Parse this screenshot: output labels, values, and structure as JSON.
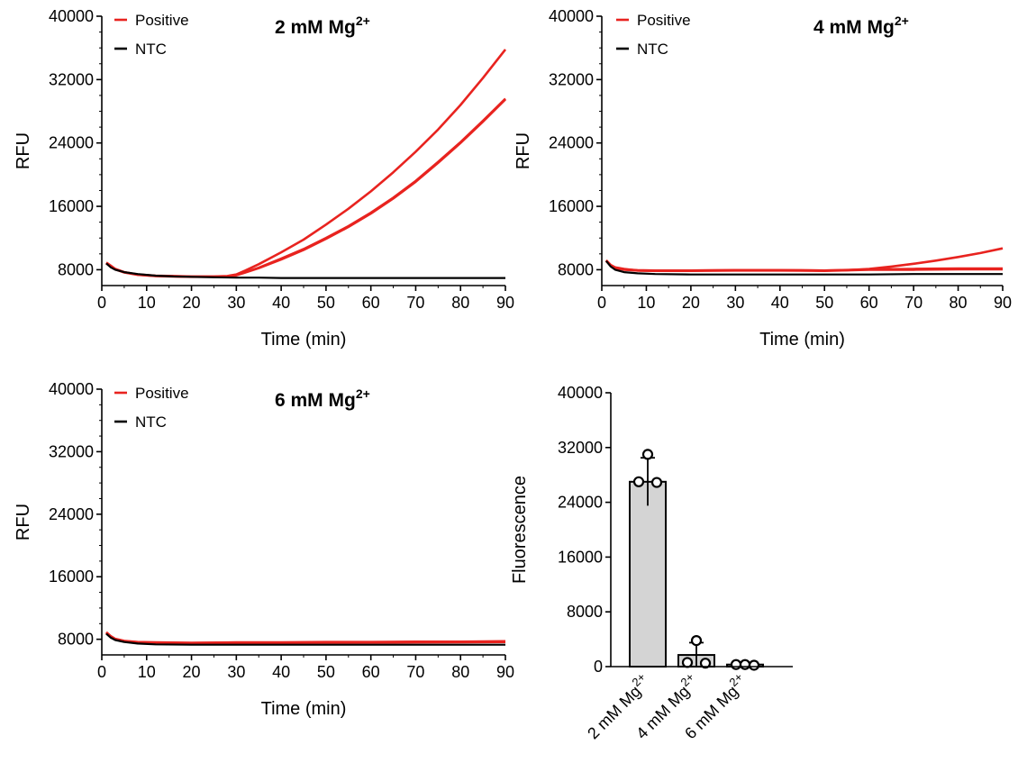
{
  "colors": {
    "positive": "#e8231f",
    "ntc": "#000000",
    "bar_fill": "#d4d4d4",
    "axis": "#000000"
  },
  "chart_data": [
    {
      "type": "line",
      "title": "2 mM Mg",
      "title_sup": "2+",
      "xlabel": "Time (min)",
      "ylabel": "RFU",
      "xlim": [
        0,
        90
      ],
      "ylim": [
        6000,
        40000
      ],
      "xticks": [
        0,
        10,
        20,
        30,
        40,
        50,
        60,
        70,
        80,
        90
      ],
      "yticks": [
        8000,
        16000,
        24000,
        32000,
        40000
      ],
      "xtick_labels": [
        "0",
        "10",
        "20",
        "30",
        "40",
        "50",
        "60",
        "70",
        "80",
        "90"
      ],
      "ytick_labels": [
        "8000",
        "16000",
        "24000",
        "32000",
        "40000"
      ],
      "legend": {
        "position": "top-left",
        "entries": [
          {
            "label": "Positive",
            "color_key": "positive"
          },
          {
            "label": "NTC",
            "color_key": "ntc"
          }
        ]
      },
      "series": [
        {
          "name": "NTC",
          "color_key": "ntc",
          "x": [
            1,
            2,
            3,
            5,
            8,
            12,
            16,
            20,
            25,
            30,
            35,
            40,
            50,
            60,
            70,
            80,
            90
          ],
          "y": [
            8800,
            8300,
            8000,
            7700,
            7450,
            7250,
            7150,
            7100,
            7050,
            7000,
            7000,
            6950,
            6950,
            6950,
            6950,
            6950,
            6950
          ]
        },
        {
          "color_key": "positive",
          "x": [
            1,
            2,
            3,
            5,
            8,
            12,
            16,
            20,
            25,
            28,
            30,
            32,
            35,
            40,
            45,
            50,
            55,
            60,
            65,
            70,
            75,
            80,
            85,
            90
          ],
          "y": [
            8900,
            8500,
            8100,
            7700,
            7400,
            7250,
            7200,
            7150,
            7150,
            7200,
            7400,
            7900,
            8700,
            10200,
            11800,
            13700,
            15700,
            17900,
            20300,
            22900,
            25700,
            28800,
            32200,
            35800
          ]
        },
        {
          "color_key": "positive",
          "x": [
            1,
            2,
            3,
            5,
            8,
            12,
            16,
            20,
            25,
            28,
            30,
            32,
            35,
            40,
            45,
            50,
            55,
            60,
            65,
            70,
            75,
            80,
            85,
            90
          ],
          "y": [
            8800,
            8400,
            8050,
            7650,
            7350,
            7200,
            7150,
            7100,
            7100,
            7150,
            7300,
            7650,
            8200,
            9300,
            10500,
            11900,
            13400,
            15100,
            17000,
            19100,
            21500,
            24000,
            26700,
            29500
          ]
        },
        {
          "color_key": "positive",
          "x": [
            1,
            2,
            3,
            5,
            8,
            12,
            16,
            20,
            25,
            28,
            30,
            32,
            35,
            40,
            45,
            50,
            55,
            60,
            65,
            70,
            75,
            80,
            85,
            90
          ],
          "y": [
            8850,
            8450,
            8080,
            7680,
            7380,
            7220,
            7170,
            7120,
            7120,
            7170,
            7330,
            7680,
            8250,
            9400,
            10600,
            12000,
            13500,
            15200,
            17100,
            19200,
            21600,
            24100,
            26800,
            29600
          ]
        }
      ]
    },
    {
      "type": "line",
      "title": "4 mM Mg",
      "title_sup": "2+",
      "xlabel": "Time (min)",
      "ylabel": "RFU",
      "xlim": [
        0,
        90
      ],
      "ylim": [
        6000,
        40000
      ],
      "xticks": [
        0,
        10,
        20,
        30,
        40,
        50,
        60,
        70,
        80,
        90
      ],
      "yticks": [
        8000,
        16000,
        24000,
        32000,
        40000
      ],
      "xtick_labels": [
        "0",
        "10",
        "20",
        "30",
        "40",
        "50",
        "60",
        "70",
        "80",
        "90"
      ],
      "ytick_labels": [
        "8000",
        "16000",
        "24000",
        "32000",
        "40000"
      ],
      "legend": {
        "position": "top-left",
        "entries": [
          {
            "label": "Positive",
            "color_key": "positive"
          },
          {
            "label": "NTC",
            "color_key": "ntc"
          }
        ]
      },
      "series": [
        {
          "name": "NTC",
          "color_key": "ntc",
          "x": [
            1,
            2,
            3,
            5,
            8,
            12,
            20,
            30,
            40,
            50,
            60,
            70,
            80,
            90
          ],
          "y": [
            9100,
            8400,
            8000,
            7700,
            7550,
            7450,
            7400,
            7400,
            7400,
            7400,
            7400,
            7450,
            7450,
            7450
          ]
        },
        {
          "color_key": "positive",
          "x": [
            1,
            2,
            3,
            5,
            8,
            12,
            20,
            30,
            40,
            50,
            55,
            60,
            65,
            70,
            75,
            80,
            85,
            90
          ],
          "y": [
            9200,
            8600,
            8300,
            8100,
            7900,
            7850,
            7900,
            7950,
            7950,
            7900,
            7950,
            8100,
            8400,
            8750,
            9150,
            9600,
            10100,
            10700
          ]
        },
        {
          "color_key": "positive",
          "x": [
            1,
            2,
            3,
            5,
            8,
            12,
            20,
            30,
            40,
            50,
            60,
            70,
            80,
            90
          ],
          "y": [
            9100,
            8500,
            8200,
            8000,
            7900,
            7850,
            7850,
            7900,
            7900,
            7850,
            8000,
            8000,
            8050,
            8050
          ]
        },
        {
          "color_key": "positive",
          "x": [
            1,
            2,
            3,
            5,
            8,
            12,
            20,
            30,
            40,
            50,
            60,
            70,
            80,
            90
          ],
          "y": [
            9150,
            8550,
            8250,
            8050,
            7950,
            7900,
            7900,
            7950,
            7950,
            7900,
            8050,
            8100,
            8150,
            8150
          ]
        }
      ]
    },
    {
      "type": "line",
      "title": "6 mM Mg",
      "title_sup": "2+",
      "xlabel": "Time (min)",
      "ylabel": "RFU",
      "xlim": [
        0,
        90
      ],
      "ylim": [
        6000,
        40000
      ],
      "xticks": [
        0,
        10,
        20,
        30,
        40,
        50,
        60,
        70,
        80,
        90
      ],
      "yticks": [
        8000,
        16000,
        24000,
        32000,
        40000
      ],
      "xtick_labels": [
        "0",
        "10",
        "20",
        "30",
        "40",
        "50",
        "60",
        "70",
        "80",
        "90"
      ],
      "ytick_labels": [
        "8000",
        "16000",
        "24000",
        "32000",
        "40000"
      ],
      "legend": {
        "position": "top-left",
        "entries": [
          {
            "label": "Positive",
            "color_key": "positive"
          },
          {
            "label": "NTC",
            "color_key": "ntc"
          }
        ]
      },
      "series": [
        {
          "name": "NTC",
          "color_key": "ntc",
          "x": [
            1,
            2,
            3,
            5,
            8,
            12,
            20,
            30,
            40,
            50,
            60,
            70,
            80,
            90
          ],
          "y": [
            8700,
            8200,
            7900,
            7650,
            7450,
            7350,
            7300,
            7300,
            7300,
            7300,
            7300,
            7300,
            7300,
            7300
          ]
        },
        {
          "color_key": "positive",
          "x": [
            1,
            2,
            3,
            5,
            8,
            12,
            20,
            30,
            40,
            50,
            60,
            70,
            80,
            90
          ],
          "y": [
            8900,
            8400,
            8050,
            7800,
            7650,
            7600,
            7550,
            7600,
            7600,
            7650,
            7650,
            7700,
            7700,
            7750
          ]
        },
        {
          "color_key": "positive",
          "x": [
            1,
            2,
            3,
            5,
            8,
            12,
            20,
            30,
            40,
            50,
            60,
            70,
            80,
            90
          ],
          "y": [
            8800,
            8300,
            7980,
            7720,
            7580,
            7520,
            7480,
            7520,
            7530,
            7560,
            7580,
            7600,
            7620,
            7650
          ]
        },
        {
          "color_key": "positive",
          "x": [
            1,
            2,
            3,
            5,
            8,
            12,
            20,
            30,
            40,
            50,
            60,
            70,
            80,
            90
          ],
          "y": [
            8850,
            8350,
            8020,
            7760,
            7620,
            7560,
            7520,
            7560,
            7570,
            7600,
            7620,
            7650,
            7660,
            7700
          ]
        }
      ]
    },
    {
      "type": "bar",
      "ylabel": "Fluorescence",
      "ylim": [
        0,
        40000
      ],
      "yticks": [
        0,
        8000,
        16000,
        24000,
        32000,
        40000
      ],
      "ytick_labels": [
        "0",
        "8000",
        "16000",
        "24000",
        "32000",
        "40000"
      ],
      "categories": [
        "2 mM Mg",
        "4 mM Mg",
        "6 mM Mg"
      ],
      "category_sup": "2+",
      "values": [
        27000,
        1700,
        300
      ],
      "error": [
        3500,
        1800,
        300
      ],
      "points": [
        [
          31000,
          27000,
          26900
        ],
        [
          3800,
          600,
          500
        ],
        [
          300,
          300,
          200
        ]
      ]
    }
  ]
}
